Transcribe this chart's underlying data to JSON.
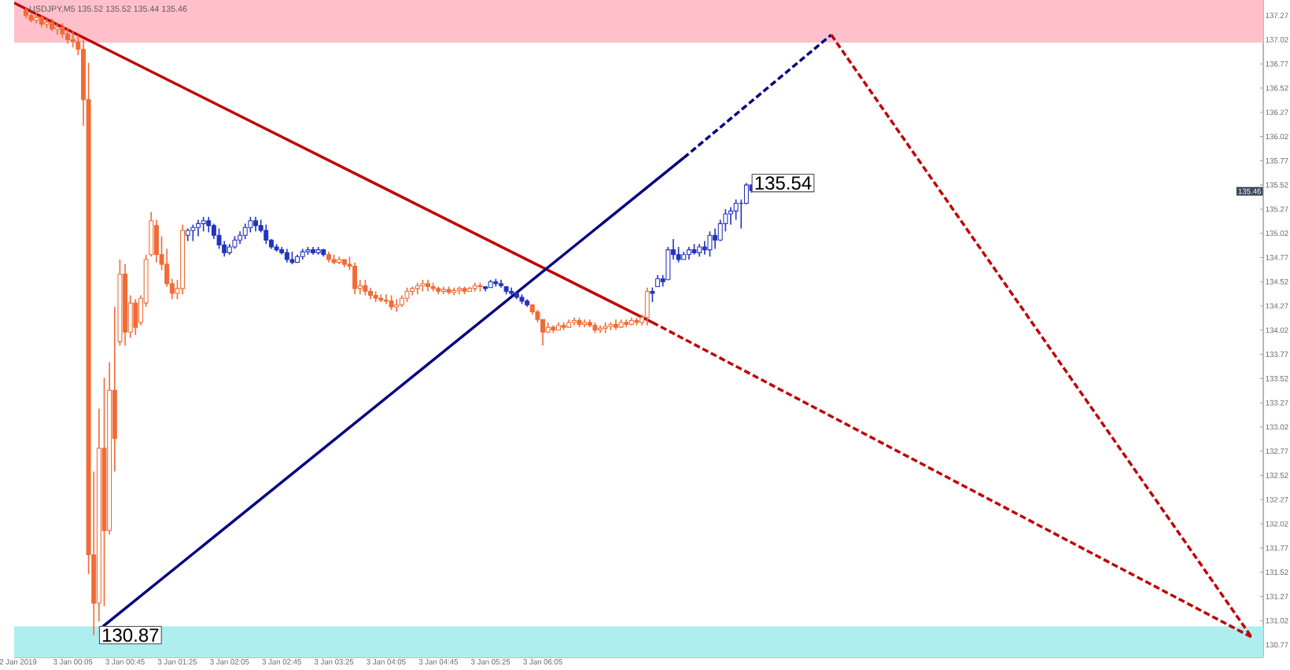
{
  "chart_data": {
    "type": "candlestick",
    "xlim": [
      "2019-01-02T23:20",
      "2019-01-03T15:17"
    ],
    "ylim": [
      130.64,
      137.43
    ],
    "xticks": [
      {
        "value": "2019-01-02T23:23",
        "label": "2 Jan 2019"
      },
      {
        "value": "2019-01-03T00:05",
        "label": "3 Jan 00:05"
      },
      {
        "value": "2019-01-03T00:45",
        "label": "3 Jan 00:45"
      },
      {
        "value": "2019-01-03T01:25",
        "label": "3 Jan 01:25"
      },
      {
        "value": "2019-01-03T02:05",
        "label": "3 Jan 02:05"
      },
      {
        "value": "2019-01-03T02:45",
        "label": "3 Jan 02:45"
      },
      {
        "value": "2019-01-03T03:25",
        "label": "3 Jan 03:25"
      },
      {
        "value": "2019-01-03T04:05",
        "label": "3 Jan 04:05"
      },
      {
        "value": "2019-01-03T04:45",
        "label": "3 Jan 04:45"
      },
      {
        "value": "2019-01-03T05:25",
        "label": "3 Jan 05:25"
      },
      {
        "value": "2019-01-03T06:05",
        "label": "3 Jan 06:05"
      }
    ],
    "yticks": [
      130.77,
      131.02,
      131.27,
      131.52,
      131.77,
      132.02,
      132.27,
      132.52,
      132.77,
      133.02,
      133.27,
      133.52,
      133.77,
      134.02,
      134.27,
      134.52,
      134.77,
      135.02,
      135.27,
      135.52,
      135.77,
      136.02,
      136.27,
      136.52,
      136.77,
      137.02,
      137.27
    ],
    "bands": [
      {
        "axis": "y",
        "from": 136.99,
        "to": 137.43,
        "color": "#ffc0cb"
      },
      {
        "axis": "y",
        "from": 130.64,
        "to": 130.96,
        "color": "#aeeeee"
      }
    ],
    "annotations": [
      "USDJPY,M5 135.52 135.52 135.44 135.46",
      {
        "text": "135.54",
        "x": "2019-01-03T08:41",
        "y": 135.54
      },
      {
        "text": "130.87",
        "x": "2019-01-03T00:21",
        "y": 130.87
      },
      "135.46"
    ],
    "series": [
      {
        "type": "line",
        "color": "#c00000",
        "line_style": "solid",
        "x": [
          "2019-01-02T23:20",
          "2019-01-03T07:29"
        ],
        "values": [
          137.4,
          134.1
        ]
      },
      {
        "type": "line",
        "color": "#c00000",
        "line_style": "dashed",
        "x": [
          "2019-01-03T07:29",
          "2019-01-03T15:08"
        ],
        "values": [
          134.1,
          130.85
        ]
      },
      {
        "type": "line",
        "color": "#000080",
        "line_style": "solid",
        "x": [
          "2019-01-03T00:28",
          "2019-01-03T07:53"
        ],
        "values": [
          130.96,
          135.8
        ]
      },
      {
        "type": "line",
        "color": "#000080",
        "line_style": "dashed",
        "x": [
          "2019-01-03T07:53",
          "2019-01-03T09:46"
        ],
        "values": [
          135.8,
          137.07
        ]
      },
      {
        "type": "line",
        "color": "#c00000",
        "line_style": "dashed",
        "x": [
          "2019-01-03T09:46",
          "2019-01-03T15:08"
        ],
        "values": [
          137.07,
          130.85
        ]
      },
      {
        "color": "#f26a35",
        "x": [
          "2019-01-02T23:29",
          "2019-01-02T23:33",
          "2019-01-02T23:37",
          "2019-01-02T23:41",
          "2019-01-02T23:45",
          "2019-01-02T23:49",
          "2019-01-02T23:53",
          "2019-01-02T23:57",
          "2019-01-03T00:01",
          "2019-01-03T00:05",
          "2019-01-03T00:09",
          "2019-01-03T00:13",
          "2019-01-03T00:17",
          "2019-01-03T00:21",
          "2019-01-03T00:25",
          "2019-01-03T00:29",
          "2019-01-03T00:33",
          "2019-01-03T00:37",
          "2019-01-03T00:41",
          "2019-01-03T00:45",
          "2019-01-03T00:49",
          "2019-01-03T00:53",
          "2019-01-03T00:57",
          "2019-01-03T01:01",
          "2019-01-03T01:05",
          "2019-01-03T01:09",
          "2019-01-03T01:13",
          "2019-01-03T01:17",
          "2019-01-03T01:21",
          "2019-01-03T01:25",
          "2019-01-03T01:29"
        ],
        "ohlc": [
          [
            137.33,
            137.35,
            137.24,
            137.27
          ],
          [
            137.27,
            137.3,
            137.2,
            137.22
          ],
          [
            137.22,
            137.3,
            137.19,
            137.25
          ],
          [
            137.25,
            137.27,
            137.15,
            137.18
          ],
          [
            137.18,
            137.24,
            137.14,
            137.2
          ],
          [
            137.2,
            137.24,
            137.11,
            137.13
          ],
          [
            137.13,
            137.2,
            137.07,
            137.15
          ],
          [
            137.15,
            137.19,
            137.04,
            137.08
          ],
          [
            137.08,
            137.14,
            136.98,
            137.02
          ],
          [
            137.02,
            137.11,
            136.94,
            137.0
          ],
          [
            137.0,
            137.07,
            136.86,
            136.92
          ],
          [
            136.92,
            137.02,
            136.13,
            136.4
          ],
          [
            136.4,
            136.78,
            131.5,
            131.7
          ],
          [
            131.7,
            132.56,
            130.87,
            131.2
          ],
          [
            131.2,
            133.21,
            131.01,
            132.8
          ],
          [
            132.8,
            133.53,
            131.17,
            131.95
          ],
          [
            131.95,
            133.69,
            131.91,
            133.4
          ],
          [
            133.4,
            134.26,
            132.56,
            132.9
          ],
          [
            133.9,
            134.75,
            133.86,
            134.6
          ],
          [
            134.6,
            134.7,
            133.86,
            134.0
          ],
          [
            134.0,
            134.38,
            133.94,
            134.3
          ],
          [
            134.3,
            134.34,
            133.97,
            134.05
          ],
          [
            134.1,
            134.38,
            134.07,
            134.35
          ],
          [
            134.3,
            134.8,
            134.26,
            134.75
          ],
          [
            134.8,
            135.24,
            134.78,
            135.15
          ],
          [
            135.1,
            135.16,
            134.72,
            134.8
          ],
          [
            134.8,
            134.99,
            134.64,
            134.7
          ],
          [
            134.7,
            134.86,
            134.47,
            134.5
          ],
          [
            134.5,
            134.55,
            134.34,
            134.4
          ],
          [
            134.4,
            134.54,
            134.34,
            134.45
          ],
          [
            134.45,
            135.11,
            134.39,
            135.05
          ]
        ]
      },
      {
        "color": "#2233c0",
        "x": [
          "2019-01-03T01:33",
          "2019-01-03T01:37",
          "2019-01-03T01:41",
          "2019-01-03T01:45",
          "2019-01-03T01:49",
          "2019-01-03T01:53",
          "2019-01-03T01:57",
          "2019-01-03T02:01",
          "2019-01-03T02:05",
          "2019-01-03T02:09",
          "2019-01-03T02:13",
          "2019-01-03T02:17",
          "2019-01-03T02:21",
          "2019-01-03T02:25",
          "2019-01-03T02:29",
          "2019-01-03T02:33",
          "2019-01-03T02:37",
          "2019-01-03T02:41",
          "2019-01-03T02:45",
          "2019-01-03T02:49",
          "2019-01-03T02:53",
          "2019-01-03T02:57",
          "2019-01-03T03:01",
          "2019-01-03T03:05",
          "2019-01-03T03:09",
          "2019-01-03T03:13",
          "2019-01-03T03:17"
        ],
        "ohlc": [
          [
            135.0,
            135.07,
            134.94,
            135.05
          ],
          [
            135.05,
            135.11,
            134.94,
            135.08
          ],
          [
            135.08,
            135.16,
            134.99,
            135.12
          ],
          [
            135.12,
            135.19,
            135.04,
            135.15
          ],
          [
            135.15,
            135.19,
            135.03,
            135.1
          ],
          [
            135.1,
            135.12,
            134.96,
            135.0
          ],
          [
            135.0,
            135.07,
            134.86,
            134.9
          ],
          [
            134.9,
            134.94,
            134.78,
            134.82
          ],
          [
            134.82,
            134.91,
            134.8,
            134.88
          ],
          [
            134.88,
            134.99,
            134.86,
            134.95
          ],
          [
            134.95,
            135.04,
            134.91,
            135.0
          ],
          [
            135.0,
            135.12,
            134.96,
            135.08
          ],
          [
            135.08,
            135.19,
            135.03,
            135.15
          ],
          [
            135.15,
            135.19,
            135.04,
            135.1
          ],
          [
            135.1,
            135.16,
            135.03,
            135.05
          ],
          [
            135.05,
            135.11,
            134.91,
            134.95
          ],
          [
            134.95,
            134.96,
            134.86,
            134.88
          ],
          [
            134.88,
            134.91,
            134.83,
            134.85
          ],
          [
            134.85,
            134.88,
            134.8,
            134.82
          ],
          [
            134.82,
            134.86,
            134.72,
            134.75
          ],
          [
            134.75,
            134.83,
            134.7,
            134.72
          ],
          [
            134.72,
            134.8,
            134.72,
            134.78
          ],
          [
            134.78,
            134.86,
            134.75,
            134.83
          ],
          [
            134.83,
            134.88,
            134.8,
            134.85
          ],
          [
            134.85,
            134.88,
            134.8,
            134.82
          ],
          [
            134.82,
            134.88,
            134.8,
            134.85
          ],
          [
            134.85,
            134.86,
            134.78,
            134.8
          ]
        ]
      },
      {
        "color": "#f26a35",
        "x": [
          "2019-01-03T03:21",
          "2019-01-03T03:25",
          "2019-01-03T03:29",
          "2019-01-03T03:33",
          "2019-01-03T03:37",
          "2019-01-03T03:41",
          "2019-01-03T03:45",
          "2019-01-03T03:49",
          "2019-01-03T03:53",
          "2019-01-03T03:57",
          "2019-01-03T04:01",
          "2019-01-03T04:05",
          "2019-01-03T04:09",
          "2019-01-03T04:13",
          "2019-01-03T04:17",
          "2019-01-03T04:21",
          "2019-01-03T04:25",
          "2019-01-03T04:29",
          "2019-01-03T04:33",
          "2019-01-03T04:37",
          "2019-01-03T04:41",
          "2019-01-03T04:45",
          "2019-01-03T04:49",
          "2019-01-03T04:53",
          "2019-01-03T04:57",
          "2019-01-03T05:01",
          "2019-01-03T05:05",
          "2019-01-03T05:09",
          "2019-01-03T05:13",
          "2019-01-03T05:17"
        ],
        "ohlc": [
          [
            134.8,
            134.83,
            134.72,
            134.75
          ],
          [
            134.75,
            134.8,
            134.7,
            134.72
          ],
          [
            134.72,
            134.78,
            134.7,
            134.75
          ],
          [
            134.75,
            134.75,
            134.67,
            134.7
          ],
          [
            134.7,
            134.78,
            134.64,
            134.68
          ],
          [
            134.68,
            134.72,
            134.39,
            134.45
          ],
          [
            134.45,
            134.54,
            134.39,
            134.48
          ],
          [
            134.48,
            134.54,
            134.38,
            134.42
          ],
          [
            134.42,
            134.46,
            134.34,
            134.38
          ],
          [
            134.38,
            134.42,
            134.31,
            134.35
          ],
          [
            134.35,
            134.39,
            134.31,
            134.33
          ],
          [
            134.33,
            134.39,
            134.29,
            134.32
          ],
          [
            134.32,
            134.38,
            134.23,
            134.26
          ],
          [
            134.26,
            134.34,
            134.21,
            134.28
          ],
          [
            134.28,
            134.38,
            134.26,
            134.35
          ],
          [
            134.35,
            134.46,
            134.31,
            134.42
          ],
          [
            134.42,
            134.47,
            134.38,
            134.45
          ],
          [
            134.45,
            134.51,
            134.39,
            134.48
          ],
          [
            134.48,
            134.54,
            134.42,
            134.5
          ],
          [
            134.5,
            134.54,
            134.42,
            134.47
          ],
          [
            134.47,
            134.51,
            134.42,
            134.45
          ],
          [
            134.45,
            134.47,
            134.39,
            134.42
          ],
          [
            134.42,
            134.47,
            134.39,
            134.44
          ],
          [
            134.44,
            134.47,
            134.39,
            134.41
          ],
          [
            134.41,
            134.46,
            134.38,
            134.43
          ],
          [
            134.43,
            134.47,
            134.39,
            134.45
          ],
          [
            134.45,
            134.47,
            134.39,
            134.42
          ],
          [
            134.42,
            134.47,
            134.42,
            134.45
          ],
          [
            134.45,
            134.51,
            134.42,
            134.48
          ],
          [
            134.48,
            134.51,
            134.42,
            134.47
          ]
        ]
      },
      {
        "color": "#2233c0",
        "x": [
          "2019-01-03T05:21",
          "2019-01-03T05:25",
          "2019-01-03T05:29",
          "2019-01-03T05:33",
          "2019-01-03T05:37",
          "2019-01-03T05:41",
          "2019-01-03T05:45",
          "2019-01-03T05:49",
          "2019-01-03T05:53"
        ],
        "ohlc": [
          [
            134.47,
            134.47,
            134.42,
            134.45
          ],
          [
            134.46,
            134.54,
            134.46,
            134.52
          ],
          [
            134.52,
            134.55,
            134.47,
            134.5
          ],
          [
            134.5,
            134.54,
            134.46,
            134.48
          ],
          [
            134.47,
            134.47,
            134.39,
            134.42
          ],
          [
            134.42,
            134.46,
            134.38,
            134.4
          ],
          [
            134.4,
            134.42,
            134.34,
            134.36
          ],
          [
            134.36,
            134.39,
            134.29,
            134.32
          ],
          [
            134.32,
            134.34,
            134.26,
            134.28
          ]
        ]
      },
      {
        "color": "#f26a35",
        "x": [
          "2019-01-03T05:57",
          "2019-01-03T06:01",
          "2019-01-03T06:05",
          "2019-01-03T06:09",
          "2019-01-03T06:13",
          "2019-01-03T06:17",
          "2019-01-03T06:21",
          "2019-01-03T06:25",
          "2019-01-03T06:29",
          "2019-01-03T06:33",
          "2019-01-03T06:37",
          "2019-01-03T06:41",
          "2019-01-03T06:45",
          "2019-01-03T06:49",
          "2019-01-03T06:53",
          "2019-01-03T06:57",
          "2019-01-03T07:01",
          "2019-01-03T07:05",
          "2019-01-03T07:09",
          "2019-01-03T07:13",
          "2019-01-03T07:17",
          "2019-01-03T07:21",
          "2019-01-03T07:25"
        ],
        "ohlc": [
          [
            134.28,
            134.29,
            134.18,
            134.21
          ],
          [
            134.21,
            134.23,
            134.1,
            134.13
          ],
          [
            134.13,
            134.13,
            133.86,
            134.0
          ],
          [
            134.0,
            134.1,
            133.99,
            134.05
          ],
          [
            134.05,
            134.07,
            133.99,
            134.02
          ],
          [
            134.02,
            134.1,
            134.02,
            134.07
          ],
          [
            134.07,
            134.1,
            134.02,
            134.05
          ],
          [
            134.05,
            134.13,
            134.05,
            134.1
          ],
          [
            134.1,
            134.15,
            134.07,
            134.12
          ],
          [
            134.12,
            134.15,
            134.05,
            134.08
          ],
          [
            134.08,
            134.13,
            134.05,
            134.1
          ],
          [
            134.1,
            134.13,
            134.05,
            134.07
          ],
          [
            134.07,
            134.1,
            133.99,
            134.02
          ],
          [
            134.02,
            134.07,
            133.99,
            134.04
          ],
          [
            134.04,
            134.1,
            133.99,
            134.06
          ],
          [
            134.06,
            134.1,
            134.02,
            134.08
          ],
          [
            134.08,
            134.13,
            134.02,
            134.05
          ],
          [
            134.05,
            134.13,
            134.05,
            134.1
          ],
          [
            134.1,
            134.13,
            134.05,
            134.08
          ],
          [
            134.08,
            134.15,
            134.07,
            134.12
          ],
          [
            134.12,
            134.15,
            134.07,
            134.1
          ],
          [
            134.1,
            134.18,
            134.07,
            134.15
          ],
          [
            134.15,
            134.46,
            134.07,
            134.42
          ]
        ]
      },
      {
        "color": "#2233c0",
        "x": [
          "2019-01-03T07:29",
          "2019-01-03T07:33",
          "2019-01-03T07:37",
          "2019-01-03T07:41",
          "2019-01-03T07:45",
          "2019-01-03T07:49",
          "2019-01-03T07:53",
          "2019-01-03T07:57",
          "2019-01-03T08:01",
          "2019-01-03T08:05",
          "2019-01-03T08:09",
          "2019-01-03T08:13",
          "2019-01-03T08:17",
          "2019-01-03T08:21",
          "2019-01-03T08:25",
          "2019-01-03T08:29",
          "2019-01-03T08:33",
          "2019-01-03T08:37",
          "2019-01-03T08:41",
          "2019-01-03T08:45"
        ],
        "ohlc": [
          [
            134.42,
            134.46,
            134.31,
            134.4
          ],
          [
            134.47,
            134.59,
            134.47,
            134.55
          ],
          [
            134.55,
            134.59,
            134.47,
            134.52
          ],
          [
            134.54,
            134.88,
            134.54,
            134.85
          ],
          [
            134.85,
            134.96,
            134.75,
            134.8
          ],
          [
            134.8,
            134.88,
            134.72,
            134.75
          ],
          [
            134.75,
            134.83,
            134.75,
            134.8
          ],
          [
            134.8,
            134.88,
            134.75,
            134.85
          ],
          [
            134.85,
            134.91,
            134.8,
            134.82
          ],
          [
            134.82,
            134.91,
            134.78,
            134.88
          ],
          [
            134.88,
            134.94,
            134.8,
            134.85
          ],
          [
            134.85,
            135.04,
            134.78,
            135.0
          ],
          [
            135.0,
            135.07,
            134.86,
            134.95
          ],
          [
            134.95,
            135.16,
            134.94,
            135.12
          ],
          [
            135.12,
            135.27,
            135.04,
            135.22
          ],
          [
            135.22,
            135.29,
            135.11,
            135.25
          ],
          [
            135.25,
            135.37,
            135.16,
            135.33
          ],
          [
            135.33,
            135.37,
            135.07,
            135.33
          ],
          [
            135.33,
            135.54,
            135.32,
            135.52
          ],
          [
            135.52,
            135.52,
            135.44,
            135.46
          ]
        ]
      }
    ]
  }
}
